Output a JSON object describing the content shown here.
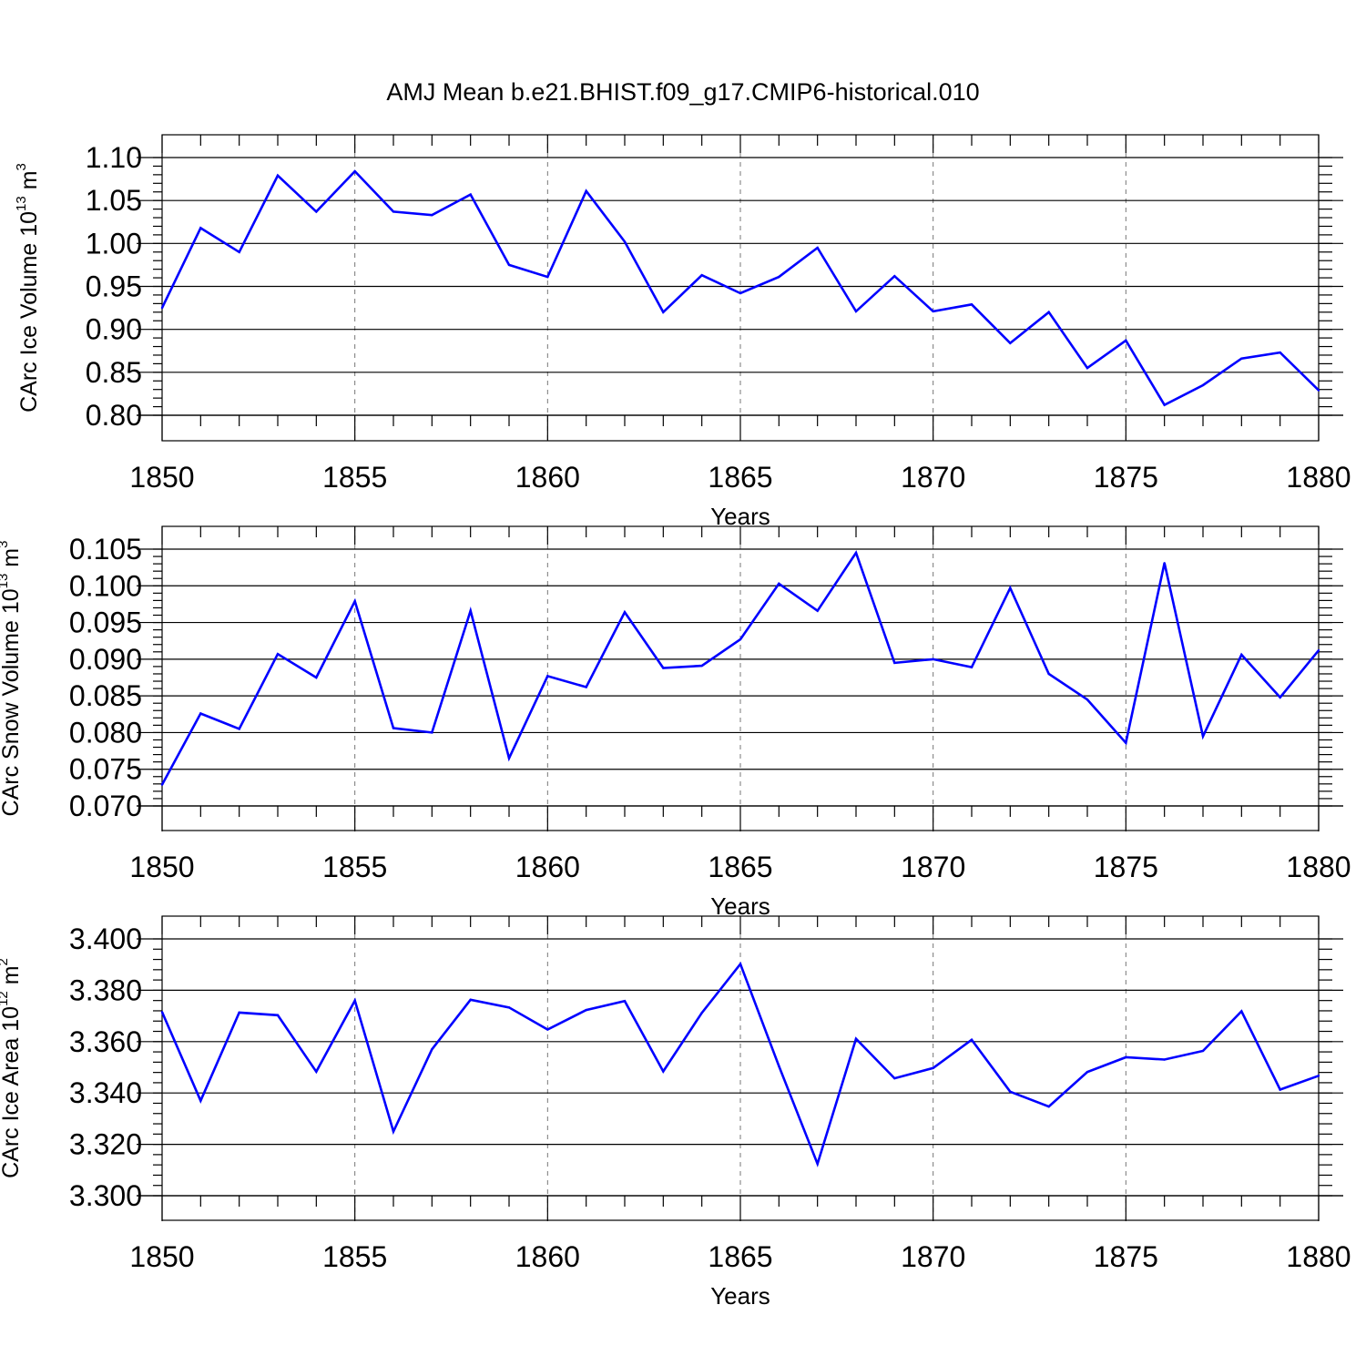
{
  "figure": {
    "title": "AMJ Mean b.e21.BHIST.f09_g17.CMIP6-historical.010",
    "line_color": "#0000ff"
  },
  "chart_data": [
    {
      "type": "line",
      "xlabel": "Years",
      "ylabel": "CArc Ice Volume 10",
      "ylabel_exp": "13",
      "ylabel_unit": " m",
      "ylabel_unit_exp": "3",
      "xlim": [
        1850,
        1880
      ],
      "ylim": [
        0.8,
        1.1
      ],
      "y_ticks": [
        0.8,
        0.85,
        0.9,
        0.95,
        1.0,
        1.05,
        1.1
      ],
      "y_tick_labels": [
        "0.80",
        "0.85",
        "0.90",
        "0.95",
        "1.00",
        "1.05",
        "1.10"
      ],
      "y_minor_step": 0.01,
      "x_ticks": [
        1850,
        1855,
        1860,
        1865,
        1870,
        1875,
        1880
      ],
      "x_tick_labels": [
        "1850",
        "1855",
        "1860",
        "1865",
        "1870",
        "1875",
        "1880"
      ],
      "grid": "vertical dashed at labeled years",
      "x": [
        1850,
        1851,
        1852,
        1853,
        1854,
        1855,
        1856,
        1857,
        1858,
        1859,
        1860,
        1861,
        1862,
        1863,
        1864,
        1865,
        1866,
        1867,
        1868,
        1869,
        1870,
        1871,
        1872,
        1873,
        1874,
        1875,
        1876,
        1877,
        1878,
        1879,
        1880
      ],
      "values": [
        0.925,
        1.018,
        0.99,
        1.079,
        1.037,
        1.084,
        1.037,
        1.033,
        1.057,
        0.975,
        0.961,
        1.061,
        1.002,
        0.92,
        0.963,
        0.942,
        0.961,
        0.995,
        0.921,
        0.962,
        0.921,
        0.929,
        0.884,
        0.92,
        0.855,
        0.887,
        0.812,
        0.835,
        0.866,
        0.873,
        0.829
      ]
    },
    {
      "type": "line",
      "xlabel": "Years",
      "ylabel": "CArc Snow Volume 10",
      "ylabel_exp": "13",
      "ylabel_unit": " m",
      "ylabel_unit_exp": "3",
      "xlim": [
        1850,
        1880
      ],
      "ylim": [
        0.07,
        0.105
      ],
      "y_ticks": [
        0.07,
        0.075,
        0.08,
        0.085,
        0.09,
        0.095,
        0.1,
        0.105
      ],
      "y_tick_labels": [
        "0.070",
        "0.075",
        "0.080",
        "0.085",
        "0.090",
        "0.095",
        "0.100",
        "0.105"
      ],
      "y_minor_step": 0.001,
      "x_ticks": [
        1850,
        1855,
        1860,
        1865,
        1870,
        1875,
        1880
      ],
      "x_tick_labels": [
        "1850",
        "1855",
        "1860",
        "1865",
        "1870",
        "1875",
        "1880"
      ],
      "grid": "vertical dashed at labeled years",
      "x": [
        1850,
        1851,
        1852,
        1853,
        1854,
        1855,
        1856,
        1857,
        1858,
        1859,
        1860,
        1861,
        1862,
        1863,
        1864,
        1865,
        1866,
        1867,
        1868,
        1869,
        1870,
        1871,
        1872,
        1873,
        1874,
        1875,
        1876,
        1877,
        1878,
        1879,
        1880
      ],
      "values": [
        0.0729,
        0.0826,
        0.0805,
        0.0907,
        0.0875,
        0.0979,
        0.0806,
        0.08,
        0.0966,
        0.0765,
        0.0877,
        0.0862,
        0.0964,
        0.0888,
        0.0891,
        0.0927,
        0.1003,
        0.0966,
        0.1045,
        0.0895,
        0.09,
        0.0889,
        0.0997,
        0.088,
        0.0845,
        0.0786,
        0.1031,
        0.0795,
        0.0906,
        0.0848,
        0.0912
      ]
    },
    {
      "type": "line",
      "xlabel": "Years",
      "ylabel": "CArc Ice Area 10",
      "ylabel_exp": "12",
      "ylabel_unit": " m",
      "ylabel_unit_exp": "2",
      "xlim": [
        1850,
        1880
      ],
      "ylim": [
        3.3,
        3.4
      ],
      "y_ticks": [
        3.3,
        3.32,
        3.34,
        3.36,
        3.38,
        3.4
      ],
      "y_tick_labels": [
        "3.300",
        "3.320",
        "3.340",
        "3.360",
        "3.380",
        "3.400"
      ],
      "y_minor_step": 0.004,
      "x_ticks": [
        1850,
        1855,
        1860,
        1865,
        1870,
        1875,
        1880
      ],
      "x_tick_labels": [
        "1850",
        "1855",
        "1860",
        "1865",
        "1870",
        "1875",
        "1880"
      ],
      "grid": "vertical dashed at labeled years",
      "x": [
        1850,
        1851,
        1852,
        1853,
        1854,
        1855,
        1856,
        1857,
        1858,
        1859,
        1860,
        1861,
        1862,
        1863,
        1864,
        1865,
        1866,
        1867,
        1868,
        1869,
        1870,
        1871,
        1872,
        1873,
        1874,
        1875,
        1876,
        1877,
        1878,
        1879,
        1880
      ],
      "values": [
        3.3715,
        3.337,
        3.3713,
        3.3703,
        3.3483,
        3.376,
        3.325,
        3.357,
        3.3763,
        3.3733,
        3.3647,
        3.3723,
        3.3758,
        3.3484,
        3.3712,
        3.3902,
        3.3505,
        3.3124,
        3.3611,
        3.3457,
        3.3497,
        3.3607,
        3.3405,
        3.3347,
        3.3482,
        3.3539,
        3.353,
        3.3564,
        3.3718,
        3.3413,
        3.3467
      ]
    }
  ]
}
